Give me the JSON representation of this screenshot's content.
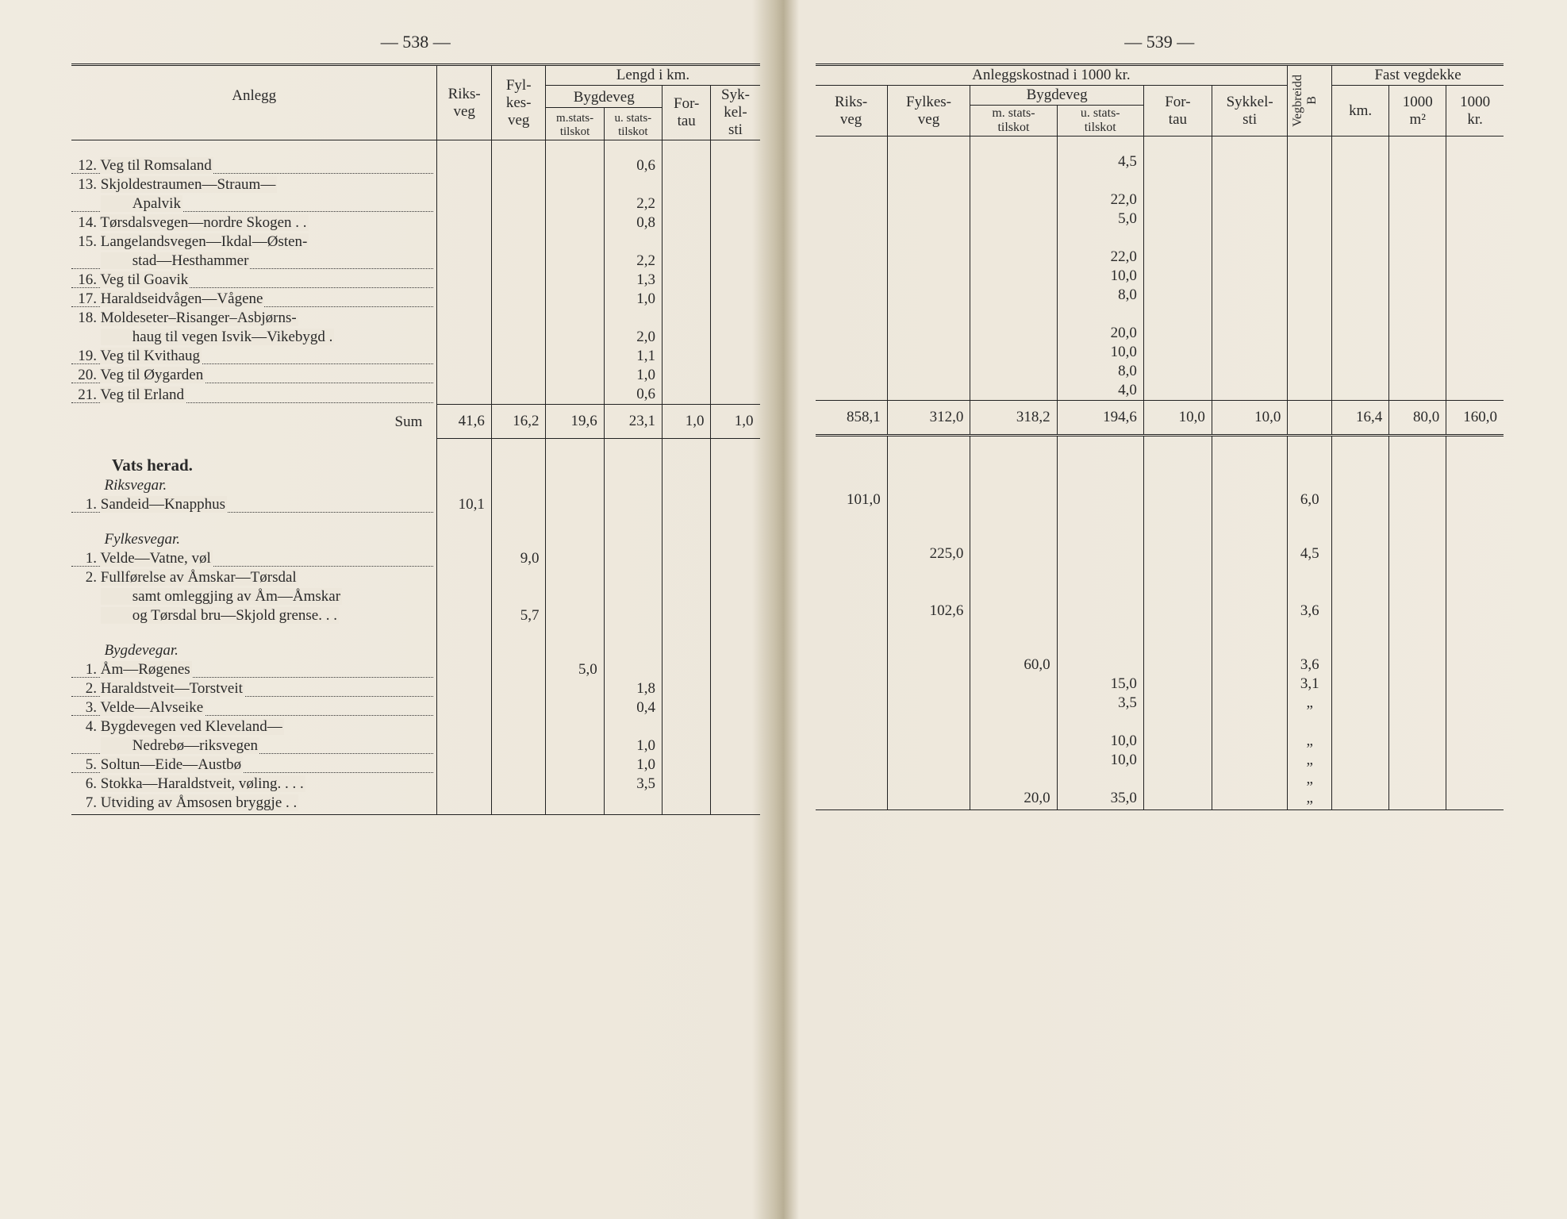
{
  "page_left_num": "— 538 —",
  "page_right_num": "— 539 —",
  "left_head": {
    "anlegg": "Anlegg",
    "lengd": "Lengd i km.",
    "riks": "Riks-\nveg",
    "fylkes": "Fyl-\nkes-\nveg",
    "bygde": "Bygdeveg",
    "mstats": "m.stats-\ntilskot",
    "ustats": "u. stats-\ntilskot",
    "fortau": "For-\ntau",
    "sykkel": "Syk-\nkel-\nsti"
  },
  "right_head": {
    "anleggs": "Anleggskostnad i 1000 kr.",
    "riks": "Riks-\nveg",
    "fylkes": "Fylkes-\nveg",
    "bygde": "Bygdeveg",
    "mstats": "m. stats-\ntilskot",
    "ustats": "u. stats-\ntilskot",
    "fortau": "For-\ntau",
    "sykkel": "Sykkel-\nsti",
    "vegbreidd": "Vegbreidd\nB",
    "fast": "Fast vegdekke",
    "km": "km.",
    "m2": "1000\nm²",
    "kr": "1000\nkr."
  },
  "rows_top": [
    {
      "n": "12.",
      "txt": "Veg til Romsaland",
      "dots": true,
      "us": "0,6",
      "r_us": "4,5"
    },
    {
      "n": "13.",
      "txt": "Skjoldestraumen—Straum—",
      "cont": true
    },
    {
      "n": "",
      "txt": "Apalvik",
      "indent": true,
      "dots": true,
      "us": "2,2",
      "r_us": "22,0"
    },
    {
      "n": "14.",
      "txt": "Tørsdalsvegen—nordre Skogen . .",
      "us": "0,8",
      "r_us": "5,0"
    },
    {
      "n": "15.",
      "txt": "Langelandsvegen—Ikdal—Østen-",
      "cont": true
    },
    {
      "n": "",
      "txt": "stad—Hesthammer",
      "indent": true,
      "dots": true,
      "us": "2,2",
      "r_us": "22,0"
    },
    {
      "n": "16.",
      "txt": "Veg til Goavik",
      "dots": true,
      "us": "1,3",
      "r_us": "10,0"
    },
    {
      "n": "17.",
      "txt": "Haraldseidvågen—Vågene",
      "dots": true,
      "us": "1,0",
      "r_us": "8,0"
    },
    {
      "n": "18.",
      "txt": "Moldeseter–Risanger–Asbjørns-",
      "cont": true
    },
    {
      "n": "",
      "txt": "haug til vegen Isvik—Vikebygd .",
      "indent": true,
      "us": "2,0",
      "r_us": "20,0"
    },
    {
      "n": "19.",
      "txt": "Veg til Kvithaug",
      "dots": true,
      "us": "1,1",
      "r_us": "10,0"
    },
    {
      "n": "20.",
      "txt": "Veg til Øygarden",
      "dots": true,
      "us": "1,0",
      "r_us": "8,0"
    },
    {
      "n": "21.",
      "txt": "Veg til Erland",
      "dots": true,
      "us": "0,6",
      "r_us": "4,0"
    }
  ],
  "sum": {
    "label": "Sum",
    "riks": "41,6",
    "fylkes": "16,2",
    "ms": "19,6",
    "us": "23,1",
    "fortau": "1,0",
    "sykkel": "1,0",
    "r_riks": "858,1",
    "r_fylkes": "312,0",
    "r_ms": "318,2",
    "r_us": "194,6",
    "r_fortau": "10,0",
    "r_sykkel": "10,0",
    "km": "16,4",
    "m2": "80,0",
    "kr": "160,0"
  },
  "vats_head": "Vats herad.",
  "riks_head": "Riksvegar.",
  "fylkes_head": "Fylkesvegar.",
  "bygde_head": "Bygdevegar.",
  "riks_rows": [
    {
      "n": "1.",
      "txt": "Sandeid—Knapphus",
      "dots": true,
      "riks": "10,1",
      "r_riks": "101,0",
      "vb": "6,0"
    }
  ],
  "fylkes_rows": [
    {
      "n": "1.",
      "txt": "Velde—Vatne, vøl",
      "dots": true,
      "fylkes": "9,0",
      "r_fylkes": "225,0",
      "vb": "4,5"
    },
    {
      "n": "2.",
      "txt": "Fullførelse av Åmskar—Tørsdal",
      "cont": true
    },
    {
      "n": "",
      "txt": "samt omleggjing av Åm—Åmskar",
      "cont": true,
      "indent": true
    },
    {
      "n": "",
      "txt": "og Tørsdal bru—Skjold grense. . .",
      "indent": true,
      "fylkes": "5,7",
      "r_fylkes": "102,6",
      "vb": "3,6"
    }
  ],
  "bygde_rows": [
    {
      "n": "1.",
      "txt": "Åm—Røgenes",
      "dots": true,
      "ms": "5,0",
      "r_ms": "60,0",
      "vb": "3,6"
    },
    {
      "n": "2.",
      "txt": "Haraldstveit—Torstveit",
      "dots": true,
      "us": "1,8",
      "r_us": "15,0",
      "vb": "3,1"
    },
    {
      "n": "3.",
      "txt": "Velde—Alvseike",
      "dots": true,
      "us": "0,4",
      "r_us": "3,5",
      "vb": "„"
    },
    {
      "n": "4.",
      "txt": "Bygdevegen ved Kleveland—",
      "cont": true
    },
    {
      "n": "",
      "txt": "Nedrebø—riksvegen",
      "indent": true,
      "dots": true,
      "us": "1,0",
      "r_us": "10,0",
      "vb": "„"
    },
    {
      "n": "5.",
      "txt": "Soltun—Eide—Austbø",
      "dots": true,
      "us": "1,0",
      "r_us": "10,0",
      "vb": "„"
    },
    {
      "n": "6.",
      "txt": "Stokka—Haraldstveit, vøling. . . .",
      "us": "3,5",
      "vb": "„"
    },
    {
      "n": "7.",
      "txt": "Utviding av Åmsosen bryggje  . .",
      "r_ms": "20,0",
      "r_us": "35,0",
      "vb": "„"
    }
  ]
}
